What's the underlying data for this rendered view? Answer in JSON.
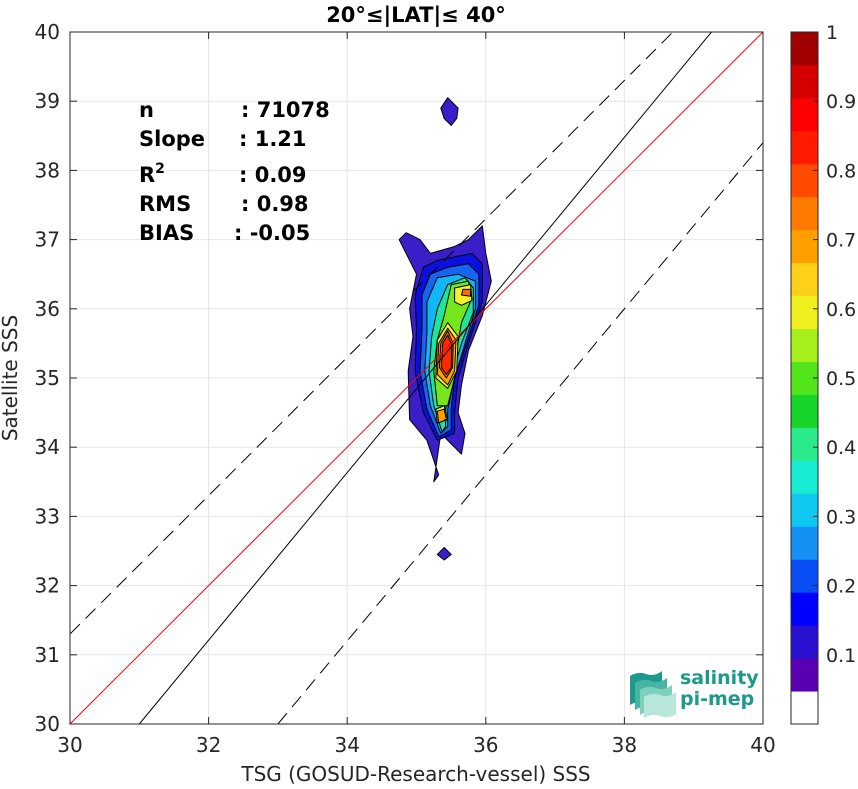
{
  "chart_data": {
    "type": "scatter-density-contour",
    "title": "20°≤|LAT|≤ 40°",
    "xlabel": "TSG (GOSUD-Research-vessel) SSS",
    "ylabel": "Satellite SSS",
    "xlim": [
      30,
      40
    ],
    "ylim": [
      30,
      40
    ],
    "x_ticks": [
      "30",
      "32",
      "34",
      "36",
      "38",
      "40"
    ],
    "y_ticks": [
      "30",
      "31",
      "32",
      "33",
      "34",
      "35",
      "36",
      "37",
      "38",
      "39",
      "40"
    ],
    "grid": true,
    "stats": [
      {
        "name": "n",
        "sep": ": ",
        "value": "71078"
      },
      {
        "name": "Slope",
        "sep": ": ",
        "value": "1.21"
      },
      {
        "name": "R",
        "sup": "2",
        "sep": ": ",
        "value": "0.09"
      },
      {
        "name": "RMS",
        "sep": ": ",
        "value": "0.98"
      },
      {
        "name": "BIAS",
        "sep": ": ",
        "value": "-0.05"
      }
    ],
    "reference_lines": [
      {
        "kind": "one-to-one",
        "color": "#ff0000",
        "x": [
          30,
          40
        ],
        "y": [
          30,
          40
        ]
      },
      {
        "kind": "regression",
        "color": "#000000",
        "x": [
          31,
          40
        ],
        "y": [
          30,
          40.9
        ]
      },
      {
        "kind": "upper-bound",
        "color": "#000000",
        "dash": true,
        "x": [
          30,
          40
        ],
        "y": [
          31.3,
          41.3
        ]
      },
      {
        "kind": "lower-bound",
        "color": "#000000",
        "dash": true,
        "x": [
          33,
          40
        ],
        "y": [
          30,
          38.4
        ]
      }
    ],
    "density_levels": [
      {
        "level": 0.05,
        "color": "#3a1fc9",
        "points": [
          [
            35.32,
            33.6
          ],
          [
            35.15,
            34.1
          ],
          [
            34.9,
            34.4
          ],
          [
            34.88,
            35.1
          ],
          [
            34.95,
            35.6
          ],
          [
            34.9,
            36.0
          ],
          [
            35.0,
            36.5
          ],
          [
            34.75,
            37.0
          ],
          [
            34.85,
            37.1
          ],
          [
            35.05,
            37.0
          ],
          [
            35.2,
            36.8
          ],
          [
            35.55,
            36.9
          ],
          [
            35.75,
            37.0
          ],
          [
            35.95,
            37.2
          ],
          [
            36.0,
            36.8
          ],
          [
            36.08,
            36.4
          ],
          [
            35.95,
            35.9
          ],
          [
            35.75,
            35.4
          ],
          [
            35.65,
            34.9
          ],
          [
            35.6,
            34.5
          ],
          [
            35.7,
            34.2
          ],
          [
            35.65,
            33.9
          ],
          [
            35.35,
            34.2
          ],
          [
            35.25,
            33.5
          ]
        ]
      },
      {
        "level": 0.05,
        "color": "#3a1fc9",
        "points": [
          [
            35.4,
            38.75
          ],
          [
            35.35,
            38.9
          ],
          [
            35.45,
            39.05
          ],
          [
            35.6,
            38.9
          ],
          [
            35.58,
            38.75
          ],
          [
            35.5,
            38.65
          ]
        ]
      },
      {
        "level": 0.05,
        "color": "#3a1fc9",
        "points": [
          [
            35.3,
            32.45
          ],
          [
            35.4,
            32.55
          ],
          [
            35.5,
            32.45
          ],
          [
            35.4,
            32.37
          ]
        ]
      },
      {
        "level": 0.15,
        "color": "#0a10e0",
        "points": [
          [
            35.3,
            34.1
          ],
          [
            35.1,
            34.5
          ],
          [
            34.98,
            35.1
          ],
          [
            35.0,
            35.7
          ],
          [
            34.98,
            36.2
          ],
          [
            35.1,
            36.6
          ],
          [
            35.3,
            36.7
          ],
          [
            35.55,
            36.75
          ],
          [
            35.8,
            36.8
          ],
          [
            35.95,
            36.65
          ],
          [
            35.95,
            36.1
          ],
          [
            35.75,
            35.5
          ],
          [
            35.6,
            35.0
          ],
          [
            35.55,
            34.5
          ],
          [
            35.55,
            34.2
          ]
        ]
      },
      {
        "level": 0.25,
        "color": "#1565f0",
        "points": [
          [
            35.32,
            34.15
          ],
          [
            35.15,
            34.55
          ],
          [
            35.05,
            35.1
          ],
          [
            35.08,
            35.7
          ],
          [
            35.08,
            36.2
          ],
          [
            35.2,
            36.5
          ],
          [
            35.45,
            36.6
          ],
          [
            35.75,
            36.65
          ],
          [
            35.9,
            36.5
          ],
          [
            35.9,
            36.05
          ],
          [
            35.72,
            35.5
          ],
          [
            35.55,
            35.0
          ],
          [
            35.5,
            34.55
          ],
          [
            35.5,
            34.25
          ]
        ]
      },
      {
        "level": 0.35,
        "color": "#12b5f5",
        "points": [
          [
            35.35,
            34.2
          ],
          [
            35.2,
            34.6
          ],
          [
            35.12,
            35.1
          ],
          [
            35.15,
            35.65
          ],
          [
            35.15,
            36.1
          ],
          [
            35.3,
            36.45
          ],
          [
            35.6,
            36.5
          ],
          [
            35.85,
            36.4
          ],
          [
            35.85,
            36.0
          ],
          [
            35.7,
            35.5
          ],
          [
            35.55,
            35.0
          ],
          [
            35.45,
            34.55
          ],
          [
            35.45,
            34.3
          ]
        ]
      },
      {
        "level": 0.45,
        "color": "#1fe59a",
        "points": [
          [
            35.37,
            34.22
          ],
          [
            35.25,
            34.6
          ],
          [
            35.18,
            35.1
          ],
          [
            35.22,
            35.6
          ],
          [
            35.3,
            36.0
          ],
          [
            35.45,
            36.35
          ],
          [
            35.7,
            36.45
          ],
          [
            35.82,
            36.3
          ],
          [
            35.82,
            35.95
          ],
          [
            35.65,
            35.5
          ],
          [
            35.5,
            35.0
          ],
          [
            35.42,
            34.55
          ],
          [
            35.42,
            34.3
          ]
        ]
      },
      {
        "level": 0.55,
        "color": "#75e51c",
        "points": [
          [
            35.3,
            34.6
          ],
          [
            35.25,
            35.1
          ],
          [
            35.3,
            35.55
          ],
          [
            35.4,
            35.9
          ],
          [
            35.5,
            36.35
          ],
          [
            35.75,
            36.4
          ],
          [
            35.8,
            36.15
          ],
          [
            35.65,
            35.8
          ],
          [
            35.58,
            35.4
          ],
          [
            35.55,
            35.0
          ],
          [
            35.45,
            34.6
          ]
        ]
      },
      {
        "level": 0.65,
        "color": "#f5f028",
        "points": [
          [
            35.3,
            34.35
          ],
          [
            35.28,
            34.55
          ],
          [
            35.4,
            34.6
          ],
          [
            35.45,
            34.4
          ]
        ]
      },
      {
        "level": 0.65,
        "color": "#f5f028",
        "points": [
          [
            35.28,
            35.0
          ],
          [
            35.3,
            35.55
          ],
          [
            35.45,
            35.8
          ],
          [
            35.6,
            35.6
          ],
          [
            35.58,
            35.1
          ],
          [
            35.45,
            34.85
          ]
        ]
      },
      {
        "level": 0.65,
        "color": "#f5f028",
        "points": [
          [
            35.55,
            36.1
          ],
          [
            35.55,
            36.3
          ],
          [
            35.78,
            36.35
          ],
          [
            35.8,
            36.12
          ],
          [
            35.65,
            36.05
          ]
        ]
      },
      {
        "level": 0.75,
        "color": "#ffa000",
        "points": [
          [
            35.32,
            34.35
          ],
          [
            35.3,
            34.52
          ],
          [
            35.4,
            34.55
          ],
          [
            35.43,
            34.4
          ]
        ]
      },
      {
        "level": 0.75,
        "color": "#ffa000",
        "points": [
          [
            35.3,
            35.05
          ],
          [
            35.32,
            35.5
          ],
          [
            35.45,
            35.72
          ],
          [
            35.57,
            35.55
          ],
          [
            35.55,
            35.1
          ],
          [
            35.45,
            34.9
          ]
        ]
      },
      {
        "level": 0.8,
        "color": "#ff6a00",
        "points": [
          [
            35.33,
            35.15
          ],
          [
            35.35,
            35.5
          ],
          [
            35.45,
            35.68
          ],
          [
            35.53,
            35.5
          ],
          [
            35.52,
            35.15
          ],
          [
            35.43,
            35.0
          ]
        ]
      },
      {
        "level": 0.8,
        "color": "#ff6a00",
        "points": [
          [
            35.65,
            36.2
          ],
          [
            35.67,
            36.28
          ],
          [
            35.78,
            36.28
          ],
          [
            35.78,
            36.18
          ]
        ]
      },
      {
        "level": 0.9,
        "color": "#ff2a00",
        "points": [
          [
            35.36,
            35.15
          ],
          [
            35.38,
            35.5
          ],
          [
            35.45,
            35.62
          ],
          [
            35.51,
            35.48
          ],
          [
            35.5,
            35.15
          ],
          [
            35.43,
            35.05
          ]
        ]
      }
    ],
    "colorbar": {
      "range": [
        0,
        1
      ],
      "labels": [
        "0.1",
        "0.2",
        "0.3",
        "0.4",
        "0.5",
        "0.6",
        "0.7",
        "0.8",
        "0.9",
        "1"
      ],
      "colors": [
        "#ffffff",
        "#5a00b4",
        "#2a10d0",
        "#0000ff",
        "#0a4ff5",
        "#1590f5",
        "#0fc8f0",
        "#18ecd2",
        "#2aea8c",
        "#16d42a",
        "#52e51a",
        "#a5f01a",
        "#f0f01e",
        "#ffd01a",
        "#ffa000",
        "#ff7a00",
        "#ff4a00",
        "#ff1a00",
        "#ff0000",
        "#d40000",
        "#a00000"
      ]
    },
    "logo_text": [
      "salinity",
      "pi-mep"
    ]
  }
}
